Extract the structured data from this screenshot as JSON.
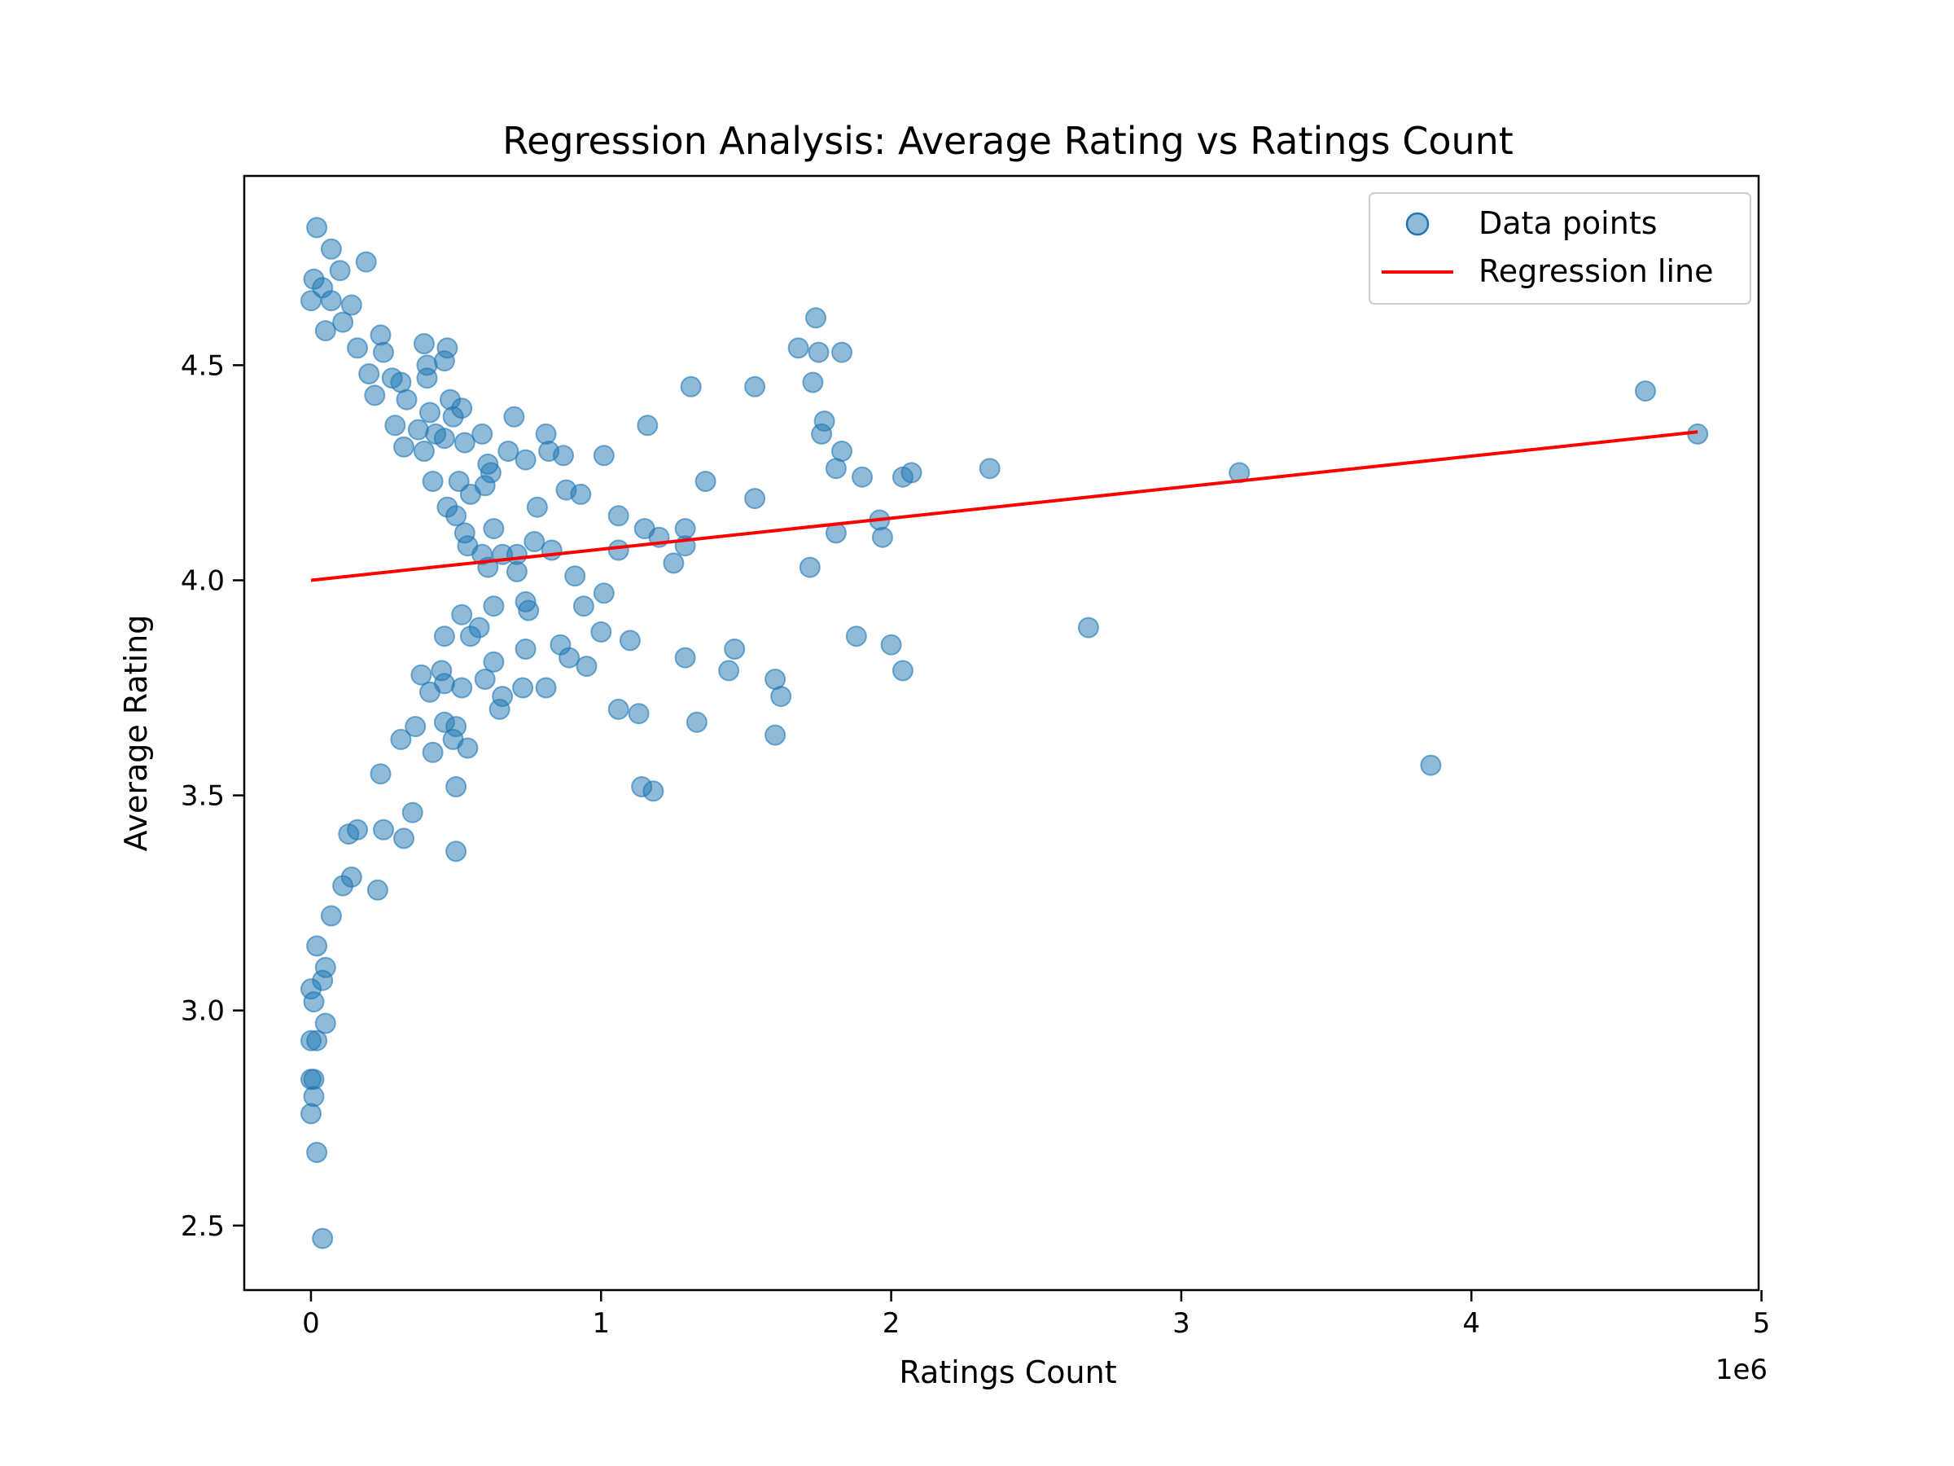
{
  "chart_data": {
    "type": "scatter",
    "title": "Regression Analysis: Average Rating vs Ratings Count",
    "xlabel": "Ratings Count",
    "ylabel": "Average Rating",
    "x_offset_label": "1e6",
    "xlim": [
      -0.23,
      4.99
    ],
    "ylim": [
      2.35,
      4.94
    ],
    "x_ticks": [
      0,
      1,
      2,
      3,
      4,
      5
    ],
    "x_tick_labels": [
      "0",
      "1",
      "2",
      "3",
      "4",
      "5"
    ],
    "y_ticks": [
      2.5,
      3.0,
      3.5,
      4.0,
      4.5
    ],
    "y_tick_labels": [
      "2.5",
      "3.0",
      "3.5",
      "4.0",
      "4.5"
    ],
    "grid": false,
    "legend_position": "top-right",
    "colors": {
      "points": "#1f77b4",
      "regression": "#ff0000"
    },
    "series": [
      {
        "name": "Data points",
        "kind": "scatter",
        "points": [
          [
            0.02,
            4.82
          ],
          [
            0.07,
            4.77
          ],
          [
            0.19,
            4.74
          ],
          [
            0.1,
            4.72
          ],
          [
            0.01,
            4.7
          ],
          [
            0.04,
            4.68
          ],
          [
            0.0,
            4.65
          ],
          [
            0.07,
            4.65
          ],
          [
            0.14,
            4.64
          ],
          [
            0.11,
            4.6
          ],
          [
            0.05,
            4.58
          ],
          [
            0.24,
            4.57
          ],
          [
            0.16,
            4.54
          ],
          [
            0.39,
            4.55
          ],
          [
            0.47,
            4.54
          ],
          [
            0.25,
            4.53
          ],
          [
            0.4,
            4.5
          ],
          [
            0.46,
            4.51
          ],
          [
            0.2,
            4.48
          ],
          [
            0.28,
            4.47
          ],
          [
            0.31,
            4.46
          ],
          [
            0.4,
            4.47
          ],
          [
            0.22,
            4.43
          ],
          [
            0.33,
            4.42
          ],
          [
            0.48,
            4.42
          ],
          [
            0.52,
            4.4
          ],
          [
            0.41,
            4.39
          ],
          [
            0.49,
            4.38
          ],
          [
            0.7,
            4.38
          ],
          [
            0.29,
            4.36
          ],
          [
            0.37,
            4.35
          ],
          [
            0.43,
            4.34
          ],
          [
            0.59,
            4.34
          ],
          [
            0.81,
            4.34
          ],
          [
            0.46,
            4.33
          ],
          [
            0.53,
            4.32
          ],
          [
            0.32,
            4.31
          ],
          [
            0.68,
            4.3
          ],
          [
            0.82,
            4.3
          ],
          [
            0.39,
            4.3
          ],
          [
            0.87,
            4.29
          ],
          [
            1.01,
            4.29
          ],
          [
            0.74,
            4.28
          ],
          [
            0.61,
            4.27
          ],
          [
            0.62,
            4.25
          ],
          [
            0.51,
            4.23
          ],
          [
            0.6,
            4.22
          ],
          [
            0.42,
            4.23
          ],
          [
            0.88,
            4.21
          ],
          [
            0.93,
            4.2
          ],
          [
            0.55,
            4.2
          ],
          [
            0.78,
            4.17
          ],
          [
            0.47,
            4.17
          ],
          [
            0.5,
            4.15
          ],
          [
            1.06,
            4.15
          ],
          [
            0.63,
            4.12
          ],
          [
            1.15,
            4.12
          ],
          [
            1.29,
            4.12
          ],
          [
            0.53,
            4.11
          ],
          [
            1.2,
            4.1
          ],
          [
            0.77,
            4.09
          ],
          [
            0.54,
            4.08
          ],
          [
            0.83,
            4.07
          ],
          [
            1.06,
            4.07
          ],
          [
            1.29,
            4.08
          ],
          [
            0.66,
            4.06
          ],
          [
            0.71,
            4.06
          ],
          [
            0.59,
            4.06
          ],
          [
            1.25,
            4.04
          ],
          [
            0.61,
            4.03
          ],
          [
            0.71,
            4.02
          ],
          [
            0.91,
            4.01
          ],
          [
            1.01,
            3.97
          ],
          [
            0.63,
            3.94
          ],
          [
            0.74,
            3.95
          ],
          [
            0.94,
            3.94
          ],
          [
            0.75,
            3.93
          ],
          [
            0.52,
            3.92
          ],
          [
            0.58,
            3.89
          ],
          [
            1.0,
            3.88
          ],
          [
            1.1,
            3.86
          ],
          [
            0.46,
            3.87
          ],
          [
            0.55,
            3.87
          ],
          [
            0.86,
            3.85
          ],
          [
            0.74,
            3.84
          ],
          [
            0.89,
            3.82
          ],
          [
            1.29,
            3.82
          ],
          [
            0.63,
            3.81
          ],
          [
            0.95,
            3.8
          ],
          [
            0.45,
            3.79
          ],
          [
            0.38,
            3.78
          ],
          [
            0.6,
            3.77
          ],
          [
            0.52,
            3.75
          ],
          [
            0.73,
            3.75
          ],
          [
            0.81,
            3.75
          ],
          [
            0.46,
            3.76
          ],
          [
            0.41,
            3.74
          ],
          [
            0.66,
            3.73
          ],
          [
            0.65,
            3.7
          ],
          [
            1.06,
            3.7
          ],
          [
            1.13,
            3.69
          ],
          [
            0.46,
            3.67
          ],
          [
            0.36,
            3.66
          ],
          [
            0.5,
            3.66
          ],
          [
            1.33,
            3.67
          ],
          [
            0.49,
            3.63
          ],
          [
            0.31,
            3.63
          ],
          [
            0.54,
            3.61
          ],
          [
            0.42,
            3.6
          ],
          [
            0.24,
            3.55
          ],
          [
            0.5,
            3.52
          ],
          [
            1.14,
            3.52
          ],
          [
            1.18,
            3.51
          ],
          [
            0.35,
            3.46
          ],
          [
            0.25,
            3.42
          ],
          [
            0.32,
            3.4
          ],
          [
            0.16,
            3.42
          ],
          [
            0.13,
            3.41
          ],
          [
            0.5,
            3.37
          ],
          [
            0.14,
            3.31
          ],
          [
            0.11,
            3.29
          ],
          [
            0.23,
            3.28
          ],
          [
            0.07,
            3.22
          ],
          [
            0.02,
            3.15
          ],
          [
            0.05,
            3.1
          ],
          [
            0.04,
            3.07
          ],
          [
            0.0,
            3.05
          ],
          [
            0.01,
            3.02
          ],
          [
            0.05,
            2.97
          ],
          [
            0.0,
            2.93
          ],
          [
            0.02,
            2.93
          ],
          [
            0.0,
            2.84
          ],
          [
            0.01,
            2.84
          ],
          [
            0.01,
            2.8
          ],
          [
            0.0,
            2.76
          ],
          [
            0.02,
            2.67
          ],
          [
            0.04,
            2.47
          ],
          [
            1.31,
            4.45
          ],
          [
            1.53,
            4.45
          ],
          [
            1.36,
            4.23
          ],
          [
            1.16,
            4.36
          ],
          [
            1.53,
            4.19
          ],
          [
            1.68,
            4.54
          ],
          [
            1.74,
            4.61
          ],
          [
            1.75,
            4.53
          ],
          [
            1.83,
            4.53
          ],
          [
            1.73,
            4.46
          ],
          [
            1.77,
            4.37
          ],
          [
            1.76,
            4.34
          ],
          [
            1.83,
            4.3
          ],
          [
            1.81,
            4.26
          ],
          [
            1.9,
            4.24
          ],
          [
            2.04,
            4.24
          ],
          [
            2.07,
            4.25
          ],
          [
            2.34,
            4.26
          ],
          [
            1.96,
            4.14
          ],
          [
            1.81,
            4.11
          ],
          [
            1.97,
            4.1
          ],
          [
            1.72,
            4.03
          ],
          [
            1.88,
            3.87
          ],
          [
            2.0,
            3.85
          ],
          [
            1.46,
            3.84
          ],
          [
            1.44,
            3.79
          ],
          [
            2.04,
            3.79
          ],
          [
            1.6,
            3.77
          ],
          [
            1.62,
            3.73
          ],
          [
            1.6,
            3.64
          ],
          [
            2.68,
            3.89
          ],
          [
            3.2,
            4.25
          ],
          [
            3.86,
            3.57
          ],
          [
            4.6,
            4.44
          ],
          [
            4.78,
            4.34
          ]
        ]
      },
      {
        "name": "Regression line",
        "kind": "line",
        "points": [
          [
            0,
            4.0
          ],
          [
            4.78,
            4.345
          ]
        ]
      }
    ]
  }
}
